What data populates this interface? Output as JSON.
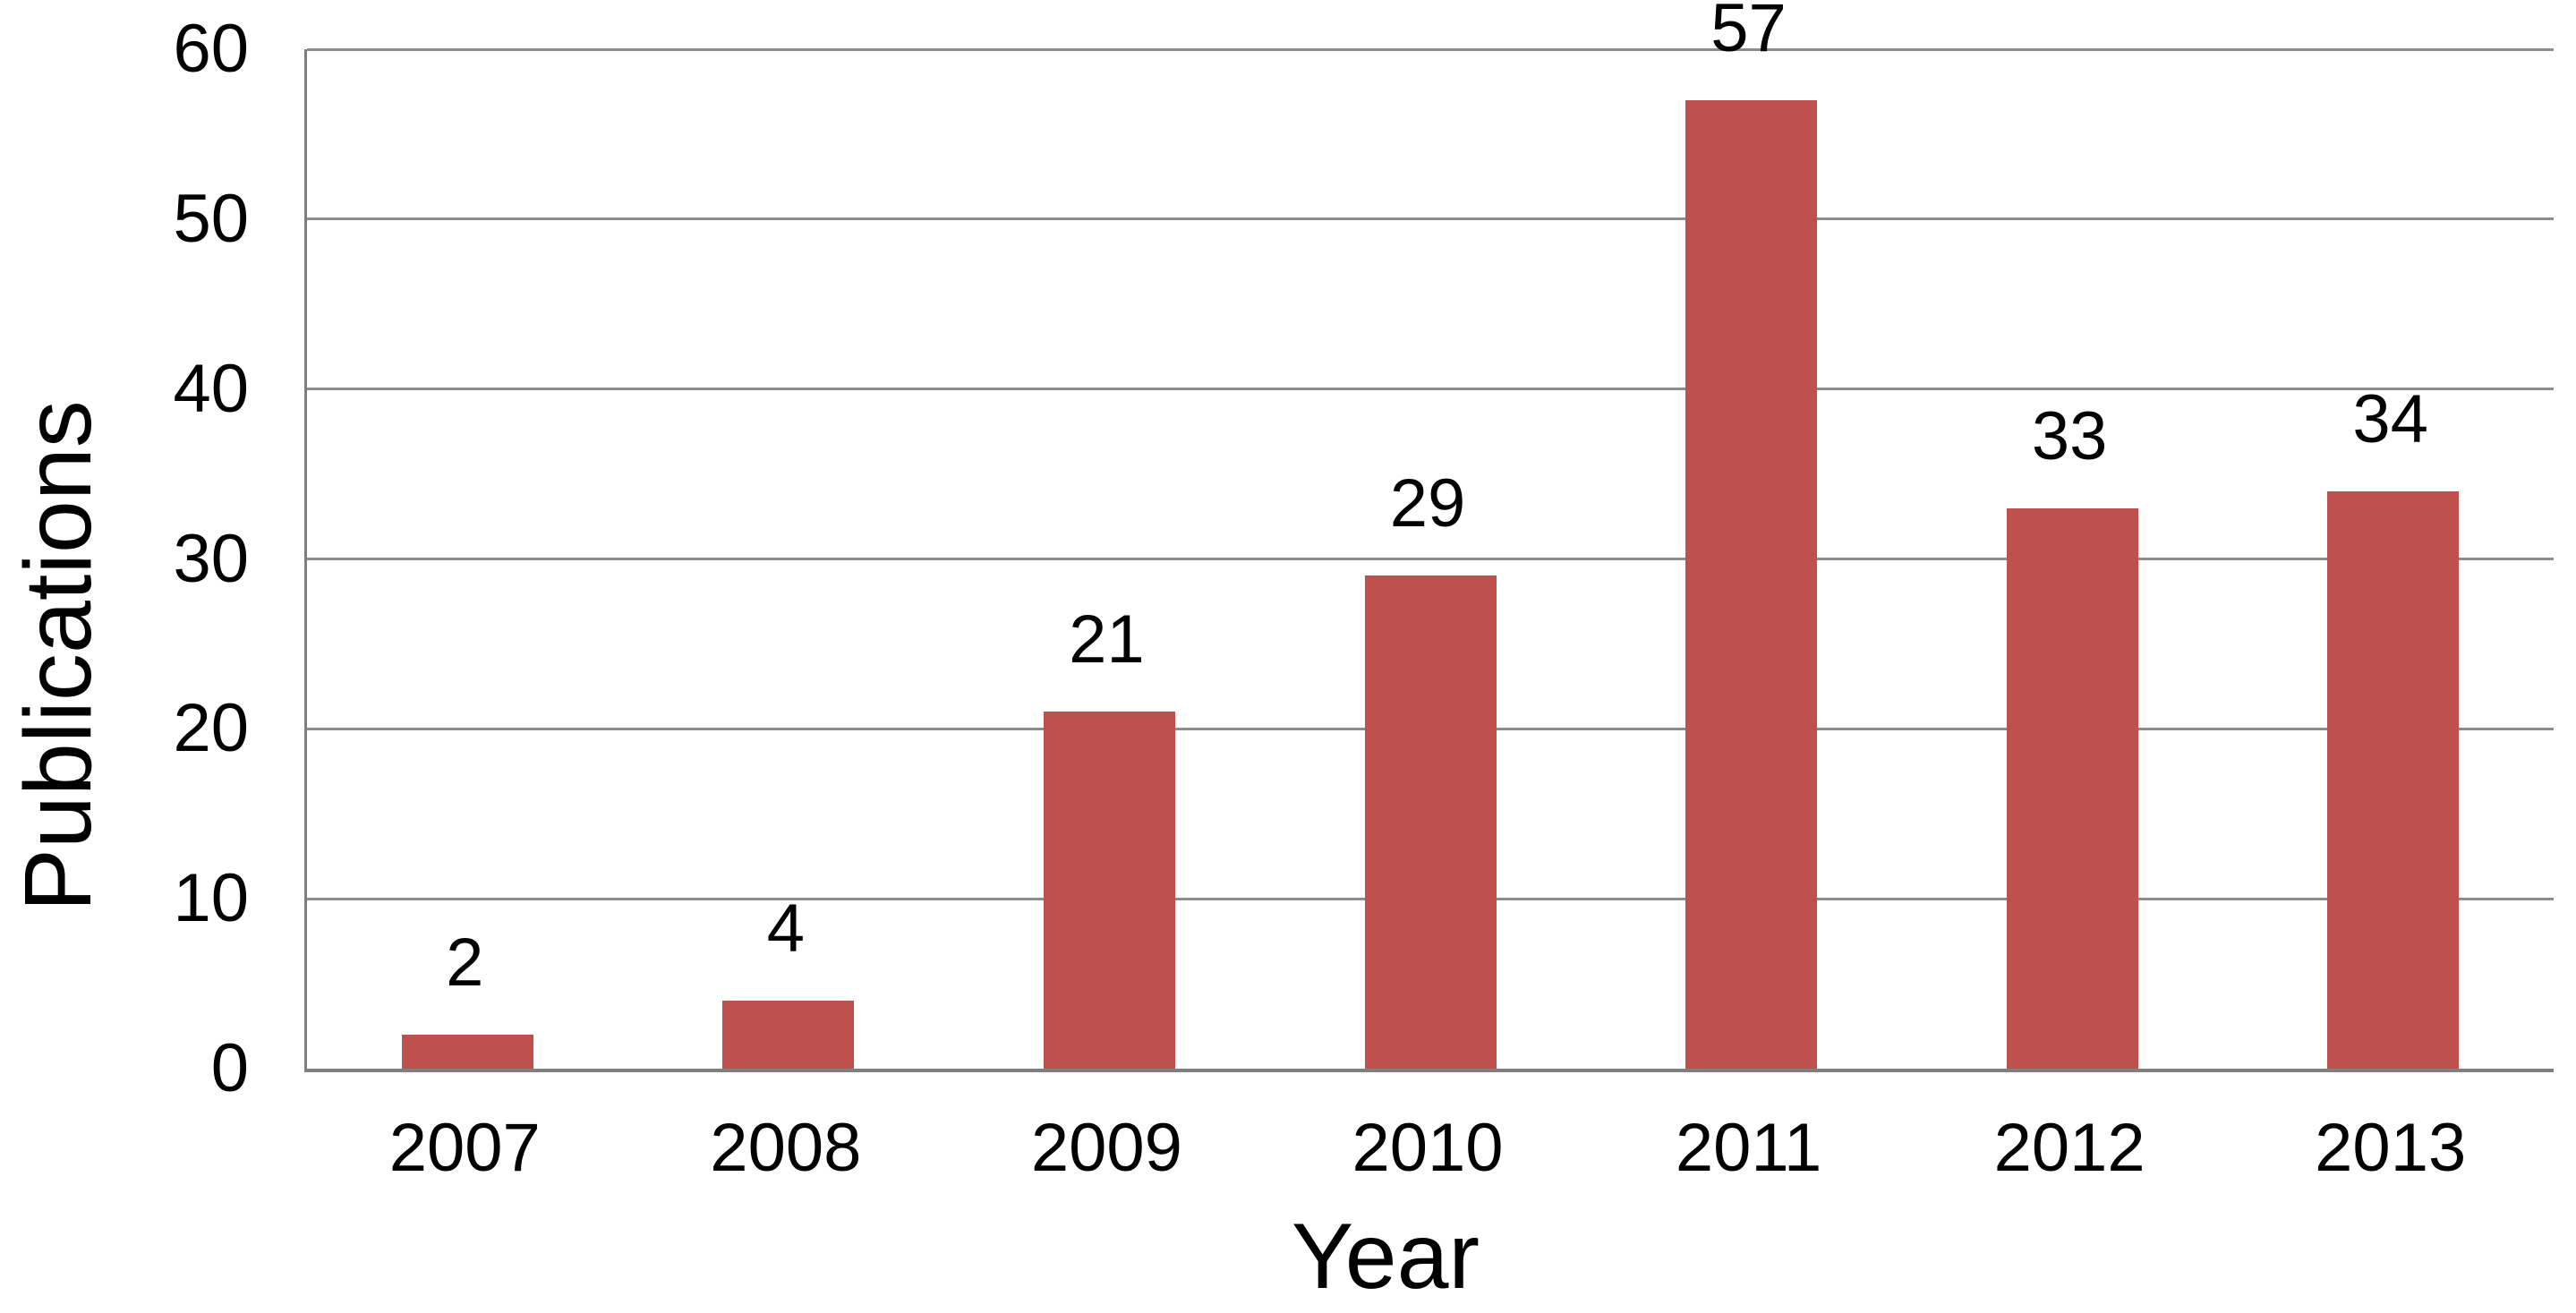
{
  "chart_data": {
    "type": "bar",
    "title": "",
    "xlabel": "Year",
    "ylabel": "Publications",
    "categories": [
      "2007",
      "2008",
      "2009",
      "2010",
      "2011",
      "2012",
      "2013"
    ],
    "values": [
      2,
      4,
      21,
      29,
      57,
      33,
      34
    ],
    "yticks": [
      0,
      10,
      20,
      30,
      40,
      50,
      60
    ],
    "ylim": [
      0,
      60
    ],
    "grid": true,
    "legend_position": "none",
    "data_labels_position": "outside-end",
    "colors": {
      "bar": "#C0504D",
      "gridline": "#8C8C8C",
      "axis_line": "#7F7F7F",
      "text": "#000000",
      "background": "#FFFFFF"
    }
  }
}
